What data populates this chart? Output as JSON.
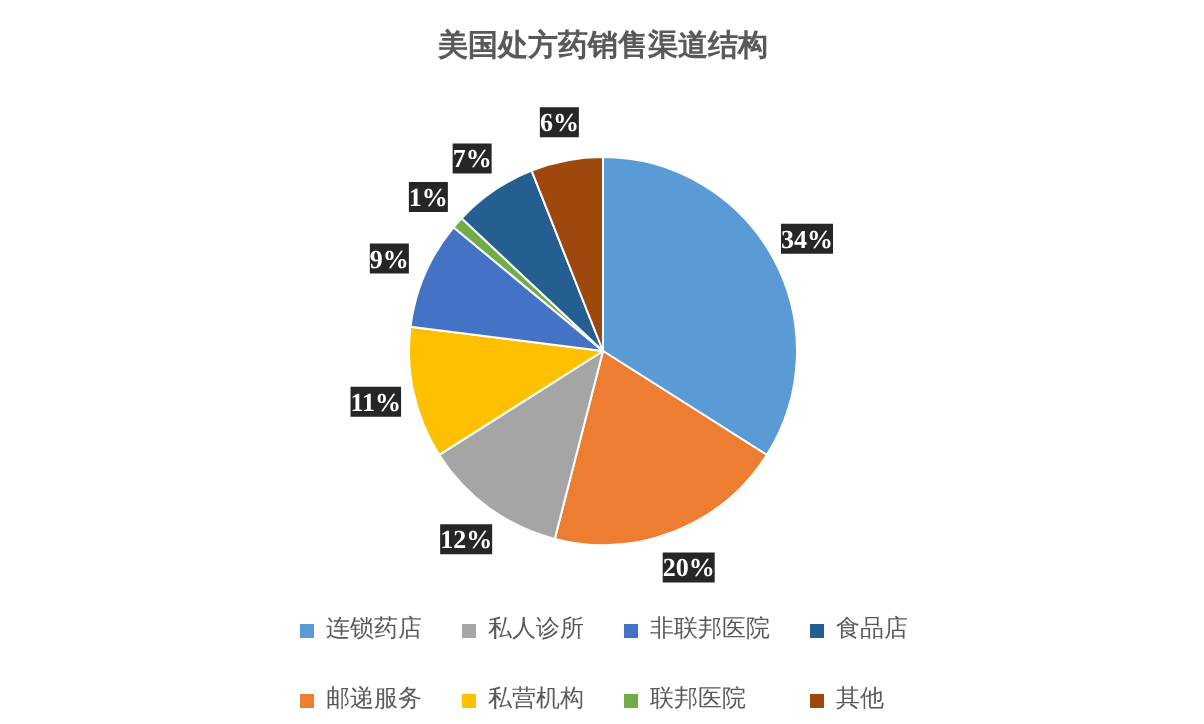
{
  "chart_data": {
    "type": "pie",
    "title": "美国处方药销售渠道结构",
    "categories": [
      "连锁药店",
      "邮递服务",
      "私人诊所",
      "私营机构",
      "非联邦医院",
      "联邦医院",
      "食品店",
      "其他"
    ],
    "values": [
      34,
      20,
      12,
      11,
      9,
      1,
      7,
      6
    ],
    "colors": [
      "#5b9bd5",
      "#ed7d31",
      "#a5a5a5",
      "#ffc000",
      "#4472c4",
      "#70ad47",
      "#255e91",
      "#9e480e"
    ],
    "value_labels": [
      "34%",
      "20%",
      "12%",
      "11%",
      "9%",
      "1%",
      "7%",
      "6%"
    ],
    "legend": "bottom"
  }
}
